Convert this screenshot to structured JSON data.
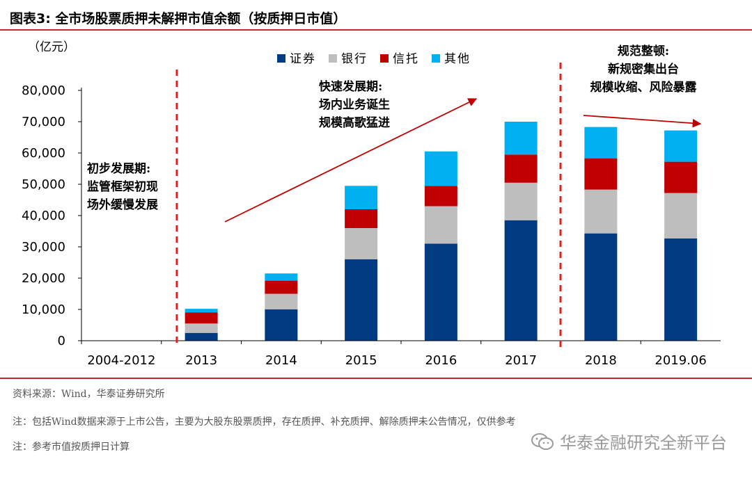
{
  "header": {
    "title": "图表3:   全市场股票质押未解押市值余额（按质押日市值）"
  },
  "chart_data": {
    "type": "bar",
    "stacked": true,
    "unit_label": "（亿元）",
    "categories": [
      "2004-2012",
      "2013",
      "2014",
      "2015",
      "2016",
      "2017",
      "2018",
      "2019.06"
    ],
    "series": [
      {
        "name": "证券",
        "color": "#003a80",
        "values": [
          0,
          2500,
          10000,
          26000,
          31000,
          38500,
          34300,
          32700
        ]
      },
      {
        "name": "银行",
        "color": "#bebebe",
        "values": [
          0,
          3000,
          5000,
          10000,
          12000,
          12000,
          14000,
          14500
        ]
      },
      {
        "name": "信托",
        "color": "#c00000",
        "values": [
          0,
          3500,
          4200,
          6000,
          6500,
          9000,
          10000,
          10000
        ]
      },
      {
        "name": "其他",
        "color": "#00b0f0",
        "values": [
          0,
          1200,
          2300,
          7500,
          11000,
          10500,
          10000,
          10000
        ]
      }
    ],
    "yticks": [
      "0",
      "10,000",
      "20,000",
      "30,000",
      "40,000",
      "50,000",
      "60,000",
      "70,000",
      "80,000"
    ],
    "ylim": [
      0,
      80000
    ],
    "annotations": {
      "phase1": [
        "初步发展期:",
        "监管框架初现",
        "场外缓慢发展"
      ],
      "phase2": [
        "快速发展期:",
        "场内业务诞生",
        "规模高歌猛进"
      ],
      "phase3": [
        "规范整顿:",
        "新规密集出台",
        "规模收缩、风险暴露"
      ]
    }
  },
  "footer": {
    "source": "资料来源：Wind，华泰证券研究所",
    "note1": "注：包括Wind数据来源于上市公告，主要为大股东股票质押，存在质押、补充质押、解除质押未公告情况，仅供参考",
    "note2": "注：参考市值按质押日计算"
  },
  "watermark": {
    "text": "华泰金融研究全新平台",
    "icon": "wechat-icon"
  },
  "colors": {
    "accent": "#c0282d"
  }
}
